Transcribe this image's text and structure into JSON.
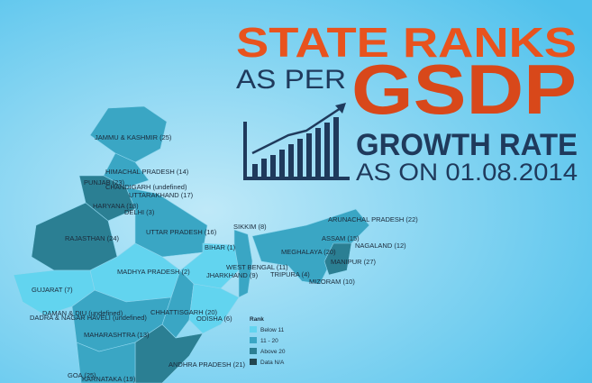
{
  "title": {
    "line1": "STATE RANKS",
    "line2": "AS PER",
    "line3": "GSDP",
    "line4": "GROWTH RATE",
    "line5": "AS ON 01.08.2014"
  },
  "states": [
    "JAMMU & KASHMIR (25)",
    "HIMACHAL PRADESH (14)",
    "PUNJAB (23)",
    "CHANDIGARH (undefined)",
    "UTTARAKHAND (17)",
    "HARYANA (18)",
    "DELHI (3)",
    "RAJASTHAN (24)",
    "UTTAR PRADESH (16)",
    "SIKKIM (8)",
    "ARUNACHAL PRADESH (22)",
    "ASSAM (15)",
    "NAGALAND (12)",
    "MEGHALAYA (20)",
    "MANIPUR (27)",
    "BIHAR (1)",
    "WEST BENGAL (11)",
    "TRIPURA (4)",
    "MIZORAM (10)",
    "MADHYA PRADESH (2)",
    "JHARKHAND (9)",
    "GUJARAT (7)",
    "DAMAN & DIU (undefined)",
    "DADRA & NAGAR HAVELI (undefined)",
    "ODISHA (6)",
    "CHHATTISGARH (20)",
    "MAHARASHTRA (13)",
    "ANDHRA PRADESH (21)",
    "GOA (25)",
    "KARNATAKA (19)"
  ],
  "legend": {
    "title": "Rank",
    "items": [
      {
        "label": "Below 11",
        "color": "#62d4ef"
      },
      {
        "label": "11 - 20",
        "color": "#3aa6c4"
      },
      {
        "label": "Above 20",
        "color": "#2b7f93"
      },
      {
        "label": "Data N/A",
        "color": "#22454f"
      }
    ]
  }
}
